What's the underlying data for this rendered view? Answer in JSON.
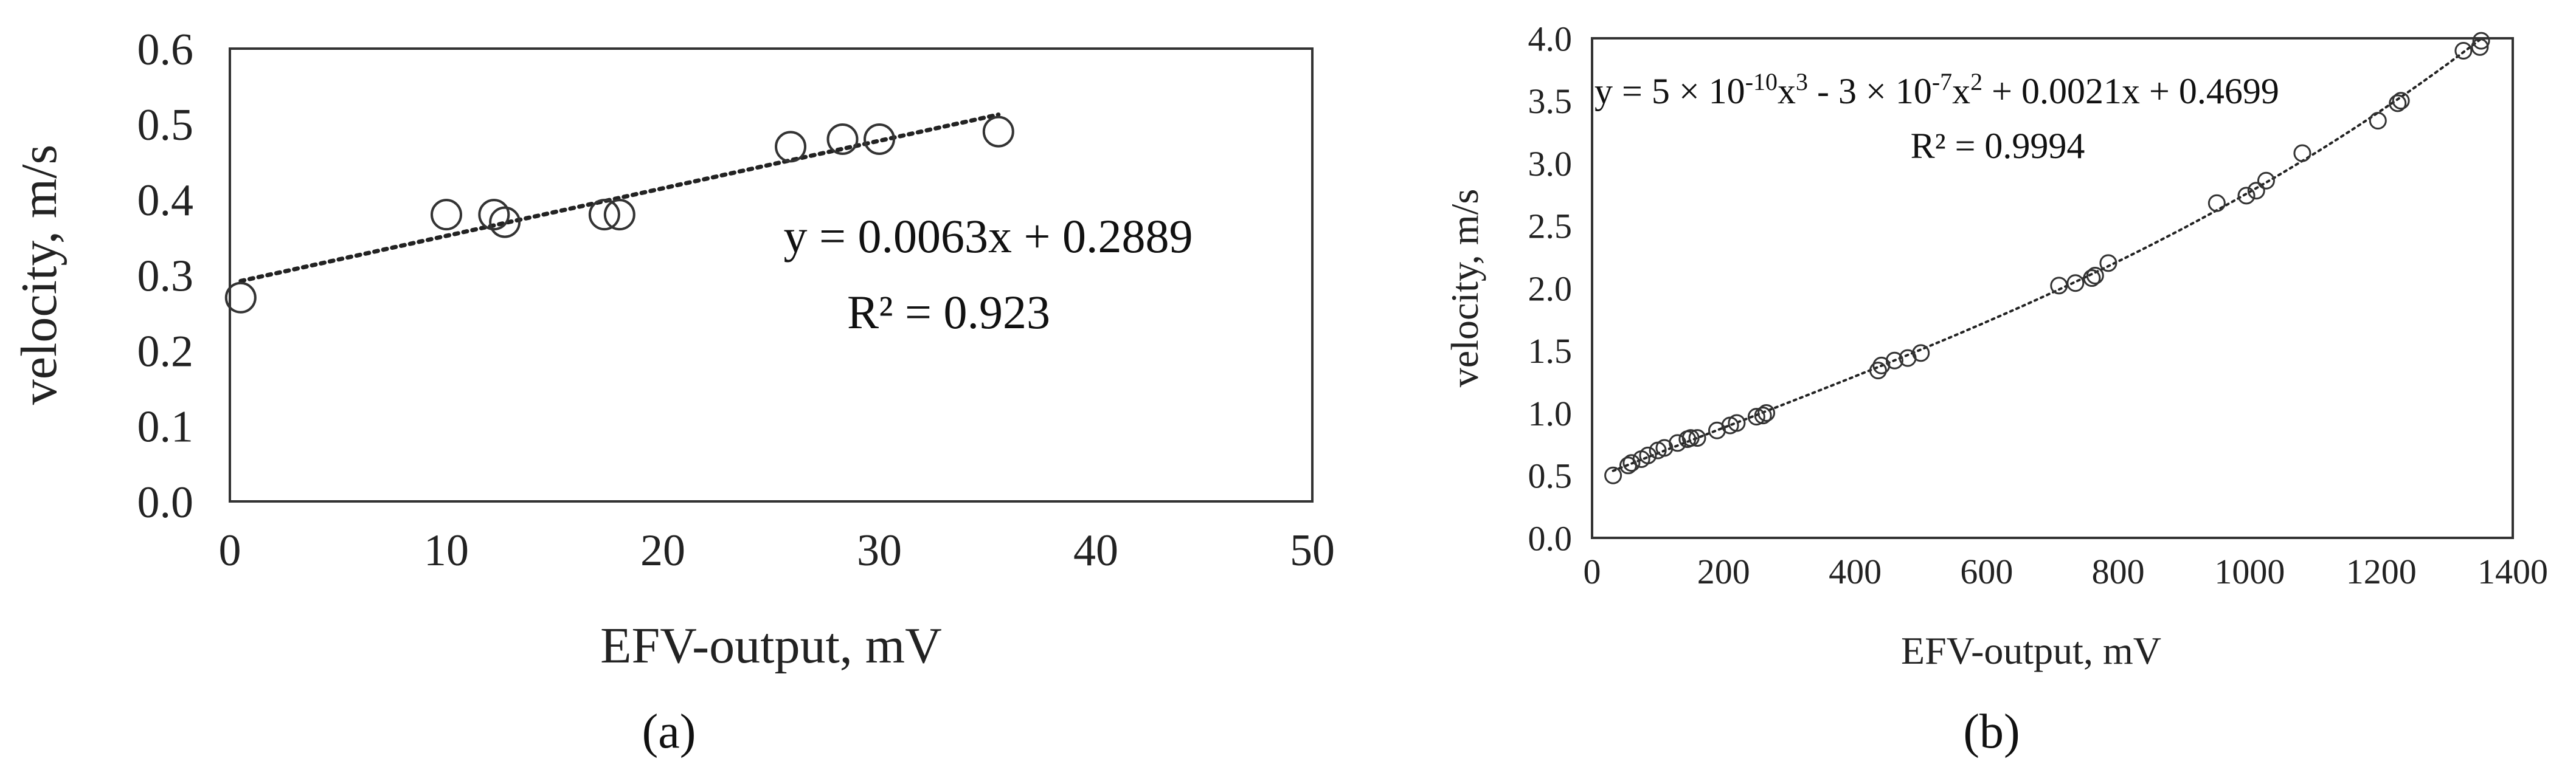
{
  "chart_data": [
    {
      "panel_label": "(a)",
      "type": "scatter",
      "xlabel": "EFV-output, mV",
      "ylabel": "velocity, m/s",
      "xlim": [
        0,
        50
      ],
      "ylim": [
        0.0,
        0.6
      ],
      "xticks": [
        "0",
        "10",
        "20",
        "30",
        "40",
        "50"
      ],
      "yticks": [
        "0.0",
        "0.1",
        "0.2",
        "0.3",
        "0.4",
        "0.5",
        "0.6"
      ],
      "grid": false,
      "points": [
        {
          "x": 0.5,
          "y": 0.27
        },
        {
          "x": 10.0,
          "y": 0.38
        },
        {
          "x": 12.2,
          "y": 0.38
        },
        {
          "x": 12.7,
          "y": 0.37
        },
        {
          "x": 17.3,
          "y": 0.38
        },
        {
          "x": 18.0,
          "y": 0.38
        },
        {
          "x": 25.9,
          "y": 0.47
        },
        {
          "x": 28.3,
          "y": 0.48
        },
        {
          "x": 30.0,
          "y": 0.48
        },
        {
          "x": 35.5,
          "y": 0.49
        }
      ],
      "trendline": {
        "type": "linear",
        "coef": [
          0.2889,
          0.0063
        ],
        "x_range": [
          0.5,
          35.5
        ]
      },
      "equation": "y = 0.0063x + 0.2889",
      "r2_label": "R² = 0.923"
    },
    {
      "panel_label": "(b)",
      "type": "scatter",
      "xlabel": "EFV-output, mV",
      "ylabel": "velocity, m/s",
      "xlim": [
        0,
        1400
      ],
      "ylim": [
        0.0,
        4.0
      ],
      "xticks": [
        "0",
        "200",
        "400",
        "600",
        "800",
        "1000",
        "1200",
        "1400"
      ],
      "yticks": [
        "0.0",
        "0.5",
        "1.0",
        "1.5",
        "2.0",
        "2.5",
        "3.0",
        "3.5",
        "4.0"
      ],
      "grid": false,
      "points": [
        {
          "x": 32,
          "y": 0.5
        },
        {
          "x": 55,
          "y": 0.58
        },
        {
          "x": 60,
          "y": 0.6
        },
        {
          "x": 75,
          "y": 0.63
        },
        {
          "x": 85,
          "y": 0.66
        },
        {
          "x": 100,
          "y": 0.7
        },
        {
          "x": 110,
          "y": 0.72
        },
        {
          "x": 130,
          "y": 0.76
        },
        {
          "x": 145,
          "y": 0.79
        },
        {
          "x": 150,
          "y": 0.8
        },
        {
          "x": 160,
          "y": 0.8
        },
        {
          "x": 190,
          "y": 0.86
        },
        {
          "x": 210,
          "y": 0.9
        },
        {
          "x": 220,
          "y": 0.92
        },
        {
          "x": 250,
          "y": 0.97
        },
        {
          "x": 260,
          "y": 0.98
        },
        {
          "x": 265,
          "y": 1.0
        },
        {
          "x": 435,
          "y": 1.34
        },
        {
          "x": 440,
          "y": 1.38
        },
        {
          "x": 460,
          "y": 1.42
        },
        {
          "x": 480,
          "y": 1.44
        },
        {
          "x": 500,
          "y": 1.48
        },
        {
          "x": 710,
          "y": 2.02
        },
        {
          "x": 735,
          "y": 2.04
        },
        {
          "x": 760,
          "y": 2.08
        },
        {
          "x": 765,
          "y": 2.1
        },
        {
          "x": 785,
          "y": 2.2
        },
        {
          "x": 950,
          "y": 2.68
        },
        {
          "x": 995,
          "y": 2.74
        },
        {
          "x": 1010,
          "y": 2.78
        },
        {
          "x": 1025,
          "y": 2.86
        },
        {
          "x": 1080,
          "y": 3.08
        },
        {
          "x": 1195,
          "y": 3.34
        },
        {
          "x": 1225,
          "y": 3.48
        },
        {
          "x": 1230,
          "y": 3.5
        },
        {
          "x": 1325,
          "y": 3.9
        },
        {
          "x": 1350,
          "y": 3.93
        },
        {
          "x": 1352,
          "y": 3.98
        }
      ],
      "trendline": {
        "type": "polynomial",
        "coef": [
          0.4699,
          0.0021,
          -3e-07,
          5e-10
        ],
        "x_range": [
          32,
          1352
        ]
      },
      "equation_parts": [
        {
          "t": "y = 5 × 10",
          "sup": false
        },
        {
          "t": "-10",
          "sup": true
        },
        {
          "t": "x",
          "sup": false
        },
        {
          "t": "3",
          "sup": true
        },
        {
          "t": " - 3 × 10",
          "sup": false
        },
        {
          "t": "-7",
          "sup": true
        },
        {
          "t": "x",
          "sup": false
        },
        {
          "t": "2",
          "sup": true
        },
        {
          "t": " + 0.0021x + 0.4699",
          "sup": false
        }
      ],
      "r2_label": "R² = 0.9994"
    }
  ]
}
